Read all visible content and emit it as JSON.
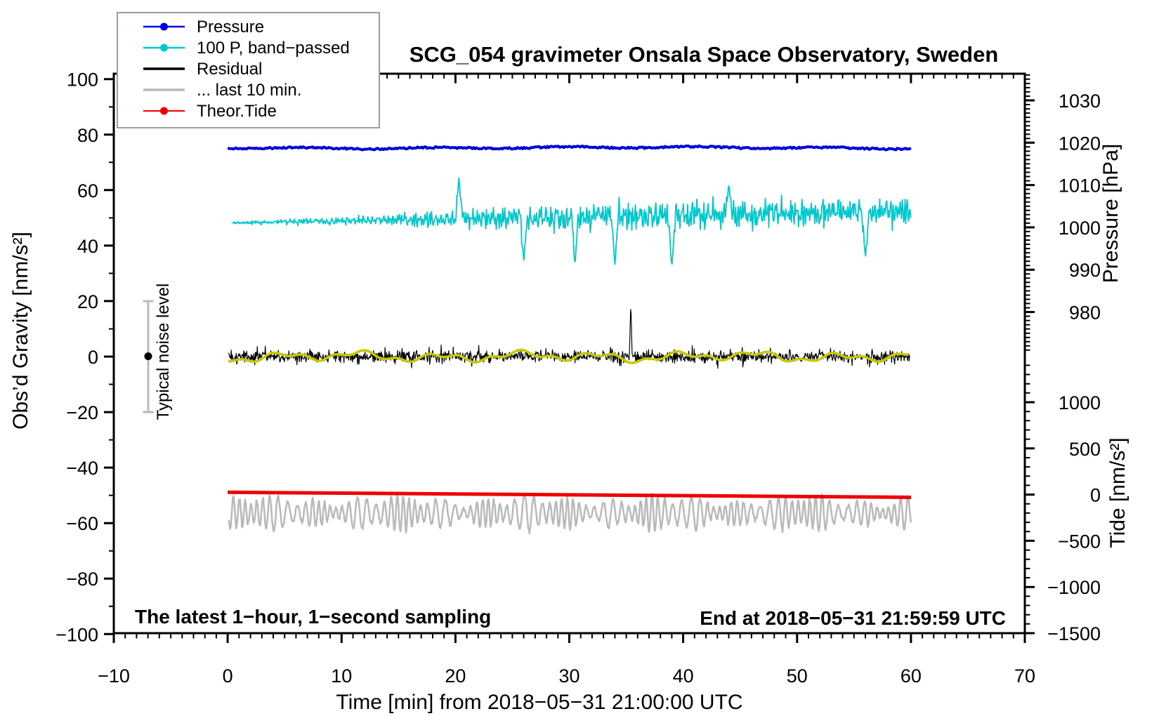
{
  "chart_data": {
    "type": "line",
    "title": "SCG_054 gravimeter Onsala Space Observatory, Sweden",
    "xlabel": "Time [min] from 2018−05−31 21:00:00 UTC",
    "ylabel_left": "Obs’d Gravity [nm/s²]",
    "ylabel_pressure": "Pressure [hPa]",
    "ylabel_tide": "Tide [nm/s²]",
    "grid": false,
    "legend_position": "top-left",
    "x_axis": {
      "range": [
        -10,
        70
      ],
      "major_ticks": [
        -10,
        0,
        10,
        20,
        30,
        40,
        50,
        60,
        70
      ],
      "minor_step": 1
    },
    "y_left": {
      "range": [
        -100,
        100
      ],
      "major_ticks": [
        100,
        80,
        60,
        40,
        20,
        0,
        -20,
        -40,
        -60,
        -80,
        -100
      ],
      "minor_step": 10
    },
    "y_pressure": {
      "major_ticks": [
        1030,
        1020,
        1010,
        1000,
        990,
        980
      ],
      "minor_step": 1
    },
    "y_tide": {
      "major_ticks": [
        1000,
        500,
        0,
        -500,
        -1000,
        -1500
      ],
      "minor_step": 100
    },
    "annotations": {
      "sampling_note": "The latest 1−hour, 1−second sampling",
      "end_note": "End at 2018−05−31 21:59:59 UTC",
      "noise_label": "Typical noise level",
      "noise_bar": {
        "time_min": -7,
        "center_gravity": 0,
        "half_range_gravity": 20
      }
    },
    "legend": [
      {
        "label": "Pressure",
        "color": "#0000dd",
        "marker": "dot",
        "line_width": 2.5
      },
      {
        "label": "100 P, band−passed",
        "color": "#00c8cc",
        "marker": "dot",
        "line_width": 2.5
      },
      {
        "label": "Residual",
        "color": "#000000",
        "marker": "line",
        "line_width": 3.5
      },
      {
        "label": "... last 10 min.",
        "color": "#b9b9b9",
        "marker": "line",
        "line_width": 3.5
      },
      {
        "label": "Theor.Tide",
        "color": "#ee0000",
        "marker": "dot",
        "line_width": 2
      }
    ],
    "series": [
      {
        "id": "pressure",
        "label": "Pressure",
        "color": "#0000dd",
        "width": 4,
        "kind": "flat_noisy",
        "t_range": [
          0,
          60
        ],
        "mean_hPa": 1018.8,
        "noise_hPa": 0.3,
        "seed": 11
      },
      {
        "id": "bandpassed",
        "label": "100 P, band−passed",
        "color": "#00c8cc",
        "width": 1.8,
        "kind": "growing_noise",
        "t_range": [
          0.4,
          60
        ],
        "center_start": 48.2,
        "center_end": 52.3,
        "amp_keypoints": [
          [
            0,
            0.5
          ],
          [
            5,
            0.8
          ],
          [
            10,
            1.3
          ],
          [
            14,
            1.8
          ],
          [
            18,
            2.5
          ],
          [
            22,
            3.3
          ],
          [
            26,
            4.1
          ],
          [
            30,
            4.3
          ],
          [
            40,
            4.3
          ],
          [
            50,
            4.6
          ],
          [
            60,
            4.8
          ]
        ],
        "dips": [
          {
            "t": 26,
            "value": 34.5
          },
          {
            "t": 30.5,
            "value": 32.5
          },
          {
            "t": 34,
            "value": 33
          },
          {
            "t": 39,
            "value": 31.5
          },
          {
            "t": 56,
            "value": 35.5
          }
        ],
        "peaks": [
          {
            "t": 20.3,
            "value": 64.5
          },
          {
            "t": 44,
            "value": 62
          }
        ],
        "seed": 7
      },
      {
        "id": "residual",
        "label": "Residual",
        "color": "#000000",
        "width": 1.2,
        "kind": "dense_noise",
        "t_range": [
          0.05,
          59.9
        ],
        "center": 0,
        "sigma": 2.0,
        "max_spike": {
          "t": 35.4,
          "value": 20
        },
        "seed": 3
      },
      {
        "id": "residual_smooth",
        "label": "Residual (smoothed)",
        "color": "#c8c800",
        "width": 3.5,
        "kind": "smooth",
        "t_range": [
          0.05,
          59.9
        ],
        "center": 0,
        "amp": 1.3,
        "seed": 5
      },
      {
        "id": "last10",
        "label": "... last 10 min.",
        "color": "#b9b9b9",
        "width": 2.5,
        "kind": "oscillation",
        "t_range": [
          0.1,
          60
        ],
        "center": -56.4,
        "amp_mean": 4.3,
        "amp_var": 2.5,
        "cycles": 95,
        "seed": 13
      },
      {
        "id": "theor_tide",
        "label": "Theor.Tide",
        "color": "#ee0000",
        "width": 5,
        "kind": "tide_line",
        "points": [
          [
            0,
            25
          ],
          [
            30,
            3
          ],
          [
            60,
            -30
          ]
        ]
      }
    ]
  }
}
